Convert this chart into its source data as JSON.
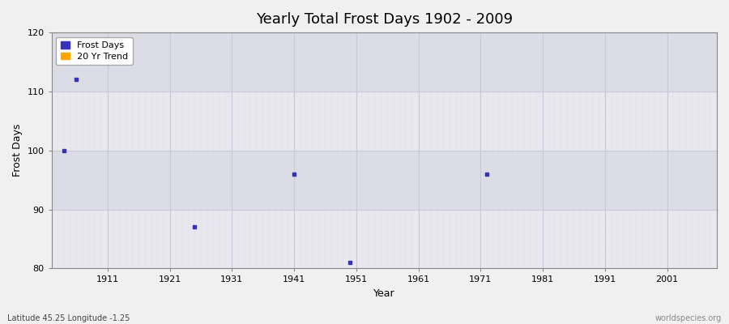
{
  "title": "Yearly Total Frost Days 1902 - 2009",
  "xlabel": "Year",
  "ylabel": "Frost Days",
  "xlim": [
    1902,
    2009
  ],
  "ylim": [
    80,
    120
  ],
  "yticks": [
    80,
    90,
    100,
    110,
    120
  ],
  "xticks": [
    1911,
    1921,
    1931,
    1941,
    1951,
    1961,
    1971,
    1981,
    1991,
    2001
  ],
  "figure_bg": "#f0f0f0",
  "plot_bg_light": "#ebebeb",
  "plot_bg_dark": "#e0e0e8",
  "frost_days_color": "#3333bb",
  "trend_color": "#ffa500",
  "frost_days_x": [
    1904,
    1906,
    1925,
    1941,
    1950,
    1972
  ],
  "frost_days_y": [
    100,
    112,
    87,
    96,
    81,
    96
  ],
  "bottom_left_text": "Latitude 45.25 Longitude -1.25",
  "bottom_right_text": "worldspecies.org",
  "major_grid_color": "#c8c8d8",
  "minor_grid_color": "#d8d8e4",
  "band_colors": [
    "#e8e8ee",
    "#dcdce6"
  ]
}
